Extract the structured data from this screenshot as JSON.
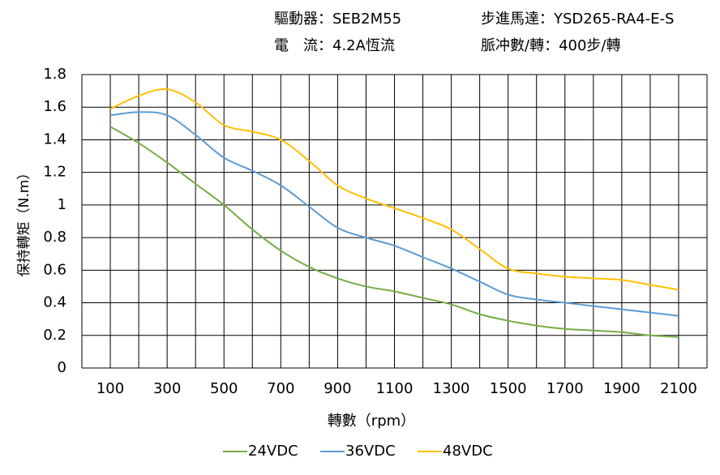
{
  "chart_data": {
    "type": "line",
    "header": [
      "驅動器：SEB2M55",
      "步進馬達：YSD265-RA4-E-S",
      "電　流：4.2A恆流",
      "脈冲數/轉：400步/轉"
    ],
    "x_label": "轉數（rpm）",
    "y_label": "保持轉矩（N.m）",
    "x": [
      100,
      200,
      300,
      400,
      500,
      600,
      700,
      800,
      900,
      1000,
      1100,
      1200,
      1300,
      1400,
      1500,
      1600,
      1700,
      1800,
      1900,
      2000,
      2100
    ],
    "series": [
      {
        "name": "24VDC",
        "color": "#77ac46",
        "values": [
          1.48,
          1.38,
          1.26,
          1.13,
          1.0,
          0.85,
          0.72,
          0.62,
          0.55,
          0.5,
          0.47,
          0.43,
          0.39,
          0.33,
          0.29,
          0.26,
          0.24,
          0.23,
          0.22,
          0.2,
          0.19
        ]
      },
      {
        "name": "36VDC",
        "color": "#5b9bd5",
        "values": [
          1.55,
          1.57,
          1.55,
          1.43,
          1.29,
          1.21,
          1.12,
          0.99,
          0.86,
          0.8,
          0.75,
          0.68,
          0.61,
          0.53,
          0.45,
          0.42,
          0.4,
          0.38,
          0.36,
          0.34,
          0.32
        ]
      },
      {
        "name": "48VDC",
        "color": "#ffc000",
        "values": [
          1.59,
          1.67,
          1.71,
          1.63,
          1.49,
          1.45,
          1.4,
          1.27,
          1.12,
          1.04,
          0.98,
          0.92,
          0.85,
          0.73,
          0.61,
          0.58,
          0.56,
          0.55,
          0.54,
          0.51,
          0.48
        ]
      }
    ],
    "xlim": [
      0,
      2200
    ],
    "xticks": [
      100,
      300,
      500,
      700,
      900,
      1100,
      1300,
      1500,
      1700,
      1900,
      2100
    ],
    "x_gridlines": [
      0,
      100,
      200,
      300,
      400,
      500,
      600,
      700,
      800,
      900,
      1000,
      1100,
      1200,
      1300,
      1400,
      1500,
      1600,
      1700,
      1800,
      1900,
      2000,
      2100,
      2200
    ],
    "ylim": [
      0,
      1.8
    ],
    "yticks": [
      0,
      0.2,
      0.4,
      0.6,
      0.8,
      1,
      1.2,
      1.4,
      1.6,
      1.8
    ],
    "grid": true,
    "legend": "bottom"
  }
}
